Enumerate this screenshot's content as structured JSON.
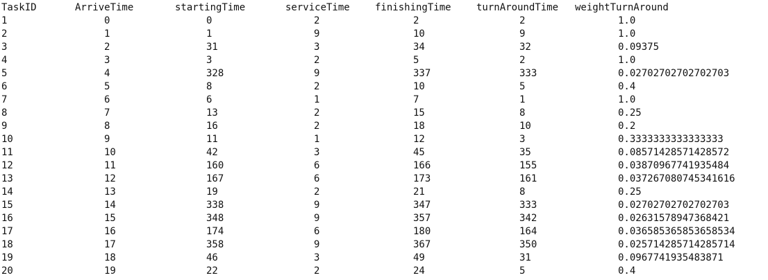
{
  "headers": [
    "TaskID",
    "ArriveTime",
    "startingTime",
    "serviceTime",
    "finishingTime",
    "turnAroundTime",
    "weightTurnAround"
  ],
  "rows": [
    [
      "1",
      "0",
      "0",
      "2",
      "2",
      "2",
      "1.0"
    ],
    [
      "2",
      "1",
      "1",
      "9",
      "10",
      "9",
      "1.0"
    ],
    [
      "3",
      "2",
      "31",
      "3",
      "34",
      "32",
      "0.09375"
    ],
    [
      "4",
      "3",
      "3",
      "2",
      "5",
      "2",
      "1.0"
    ],
    [
      "5",
      "4",
      "328",
      "9",
      "337",
      "333",
      "0.02702702702702703"
    ],
    [
      "6",
      "5",
      "8",
      "2",
      "10",
      "5",
      "0.4"
    ],
    [
      "7",
      "6",
      "6",
      "1",
      "7",
      "1",
      "1.0"
    ],
    [
      "8",
      "7",
      "13",
      "2",
      "15",
      "8",
      "0.25"
    ],
    [
      "9",
      "8",
      "16",
      "2",
      "18",
      "10",
      "0.2"
    ],
    [
      "10",
      "9",
      "11",
      "1",
      "12",
      "3",
      "0.3333333333333333"
    ],
    [
      "11",
      "10",
      "42",
      "3",
      "45",
      "35",
      "0.08571428571428572"
    ],
    [
      "12",
      "11",
      "160",
      "6",
      "166",
      "155",
      "0.03870967741935484"
    ],
    [
      "13",
      "12",
      "167",
      "6",
      "173",
      "161",
      "0.037267080745341616"
    ],
    [
      "14",
      "13",
      "19",
      "2",
      "21",
      "8",
      "0.25"
    ],
    [
      "15",
      "14",
      "338",
      "9",
      "347",
      "333",
      "0.02702702702702703"
    ],
    [
      "16",
      "15",
      "348",
      "9",
      "357",
      "342",
      "0.02631578947368421"
    ],
    [
      "17",
      "16",
      "174",
      "6",
      "180",
      "164",
      "0.036585365853658534"
    ],
    [
      "18",
      "17",
      "358",
      "9",
      "367",
      "350",
      "0.025714285714285714"
    ],
    [
      "19",
      "18",
      "46",
      "3",
      "49",
      "31",
      "0.0967741935483871"
    ],
    [
      "20",
      "19",
      "22",
      "2",
      "24",
      "5",
      "0.4"
    ]
  ]
}
